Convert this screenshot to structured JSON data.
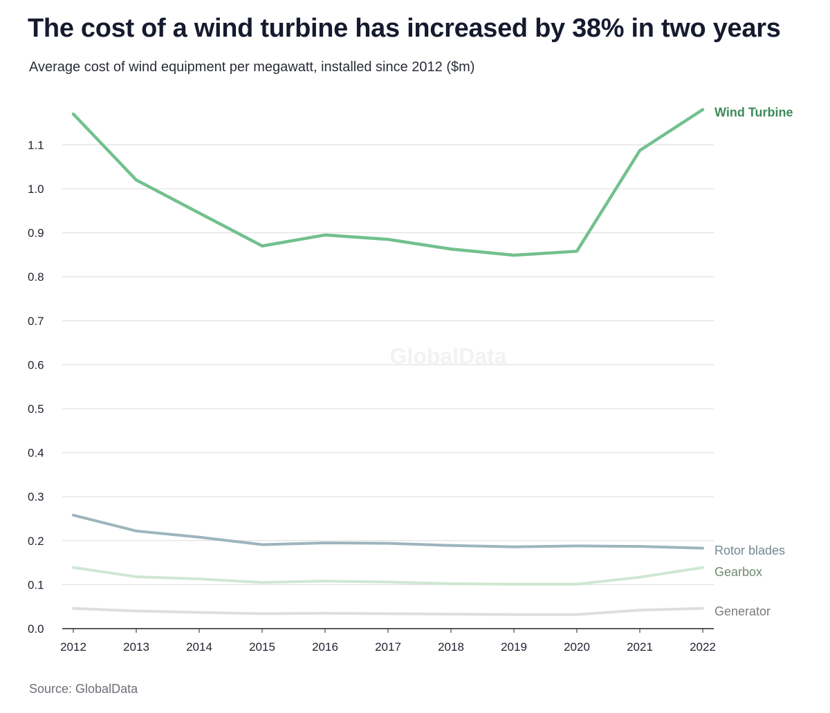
{
  "title": "The cost of a wind turbine has increased by 38% in two years",
  "subtitle": "Average cost of wind equipment per megawatt, installed since 2012 ($m)",
  "source": "Source: GlobalData",
  "watermark": "GlobalData",
  "chart_data": {
    "type": "line",
    "title": "The cost of a wind turbine has increased by 38% in two years",
    "subtitle": "Average cost of wind equipment per megawatt, installed since 2012 ($m)",
    "xlabel": "",
    "ylabel": "",
    "x": [
      "2012",
      "2013",
      "2014",
      "2015",
      "2016",
      "2017",
      "2018",
      "2019",
      "2020",
      "2021",
      "2022"
    ],
    "yticks": [
      "0.0",
      "0.1",
      "0.2",
      "0.3",
      "0.4",
      "0.5",
      "0.6",
      "0.7",
      "0.8",
      "0.9",
      "1.0",
      "1.1"
    ],
    "ylim": [
      0,
      1.18
    ],
    "grid": true,
    "legend": "direct labels at line ends",
    "series": [
      {
        "name": "Wind Turbine",
        "color": "#72c08e",
        "label_color": "#3c8a5a",
        "label_bold": true,
        "values": [
          1.17,
          1.02,
          0.945,
          0.87,
          0.895,
          0.885,
          0.863,
          0.849,
          0.858,
          1.087,
          1.18
        ]
      },
      {
        "name": "Rotor blades",
        "color": "#9db5bd",
        "label_color": "#6f8a92",
        "label_bold": false,
        "values": [
          0.258,
          0.222,
          0.208,
          0.191,
          0.195,
          0.194,
          0.189,
          0.186,
          0.188,
          0.187,
          0.183
        ]
      },
      {
        "name": "Gearbox",
        "color": "#cfe7d2",
        "label_color": "#6f8a6f",
        "label_bold": false,
        "values": [
          0.139,
          0.118,
          0.113,
          0.105,
          0.108,
          0.106,
          0.102,
          0.101,
          0.101,
          0.117,
          0.139
        ]
      },
      {
        "name": "Generator",
        "color": "#dedede",
        "label_color": "#7b7b7b",
        "label_bold": false,
        "values": [
          0.046,
          0.04,
          0.037,
          0.034,
          0.035,
          0.034,
          0.033,
          0.032,
          0.032,
          0.042,
          0.046
        ]
      }
    ]
  }
}
